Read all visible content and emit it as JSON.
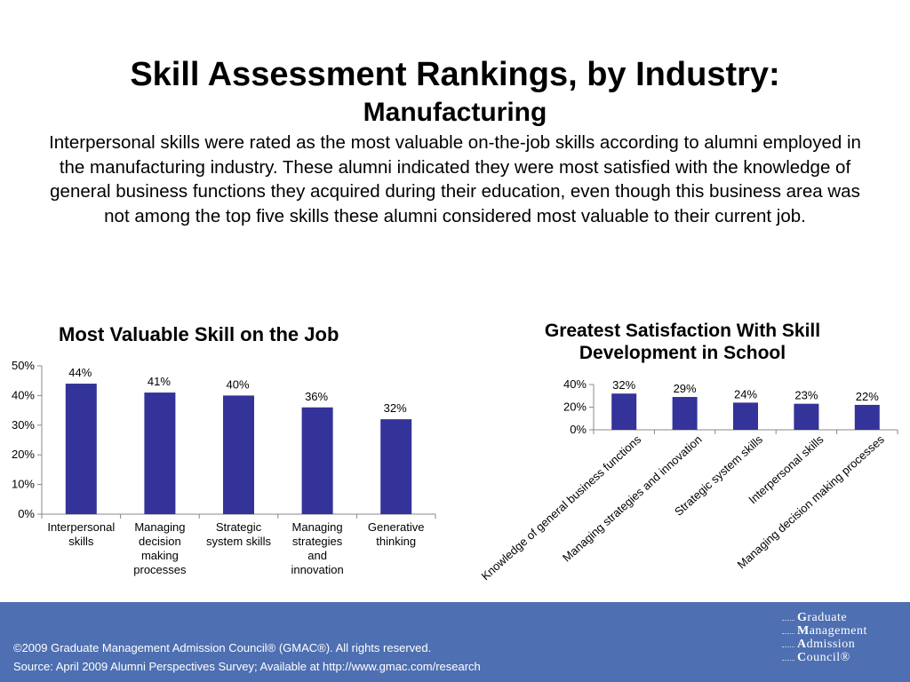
{
  "header": {
    "title": "Skill Assessment Rankings, by Industry:",
    "subtitle": "Manufacturing",
    "intro": "Interpersonal skills were rated as the most valuable on-the-job skills according to alumni employed in the manufacturing industry. These alumni indicated they were most satisfied with the knowledge of general business functions they acquired during their education, even though this business area was not among the top five skills these alumni considered most valuable to their current job."
  },
  "chart_data": [
    {
      "type": "bar",
      "title": "Most Valuable Skill on the Job",
      "categories": [
        "Interpersonal skills",
        "Managing decision making processes",
        "Strategic system skills",
        "Managing strategies and innovation",
        "Generative thinking"
      ],
      "category_lines": [
        [
          "Interpersonal",
          "skills"
        ],
        [
          "Managing",
          "decision",
          "making",
          "processes"
        ],
        [
          "Strategic",
          "system skills"
        ],
        [
          "Managing",
          "strategies",
          "and",
          "innovation"
        ],
        [
          "Generative",
          "thinking"
        ]
      ],
      "values": [
        44,
        41,
        40,
        36,
        32
      ],
      "data_labels": [
        "44%",
        "41%",
        "40%",
        "36%",
        "32%"
      ],
      "yticks": [
        "0%",
        "10%",
        "20%",
        "30%",
        "40%",
        "50%"
      ],
      "ylim": [
        0,
        50
      ],
      "xlabel": "",
      "ylabel": "",
      "grid": false,
      "bar_color": "#333399"
    },
    {
      "type": "bar",
      "title": "Greatest Satisfaction With Skill Development in School",
      "title_lines": [
        "Greatest Satisfaction With Skill",
        "Development in School"
      ],
      "categories": [
        "Knowledge of general business functions",
        "Managing strategies and innovation",
        "Strategic system skills",
        "Interpersonal skills",
        "Managing decision making processes"
      ],
      "values": [
        32,
        29,
        24,
        23,
        22
      ],
      "data_labels": [
        "32%",
        "29%",
        "24%",
        "23%",
        "22%"
      ],
      "yticks": [
        "0%",
        "20%",
        "40%"
      ],
      "ylim": [
        0,
        40
      ],
      "xlabel": "",
      "ylabel": "",
      "grid": false,
      "bar_color": "#333399"
    }
  ],
  "footer": {
    "copyright": "©2009 Graduate Management Admission Council® (GMAC®). All rights reserved.",
    "source": "Source: April 2009 Alumni Perspectives Survey; Available at http://www.gmac.com/research",
    "logo_lines": [
      {
        "initial": "G",
        "rest": "raduate"
      },
      {
        "initial": "M",
        "rest": "anagement"
      },
      {
        "initial": "A",
        "rest": "dmission"
      },
      {
        "initial": "C",
        "rest": "ouncil®"
      }
    ],
    "background_color": "#4e6fb1"
  }
}
